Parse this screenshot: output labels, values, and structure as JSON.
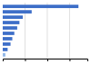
{
  "chart_data": {
    "type": "bar",
    "orientation": "horizontal",
    "categories": [
      null,
      null,
      null,
      null,
      null,
      null,
      null,
      null,
      null,
      null
    ],
    "values": [
      34,
      13,
      9,
      7.5,
      6.5,
      5.2,
      4.3,
      3.5,
      2.2,
      1.2
    ],
    "colors": [
      "#3d6ec8",
      "#3d6ec8",
      "#3d6ec8",
      "#3d6ec8",
      "#3d6ec8",
      "#3d6ec8",
      "#3d6ec8",
      "#3d6ec8",
      "#3d6ec8",
      "#92b8e8"
    ],
    "xlim": [
      0,
      38
    ],
    "xticks": [
      10,
      20,
      30
    ],
    "grid": true,
    "tick_labels": false
  }
}
